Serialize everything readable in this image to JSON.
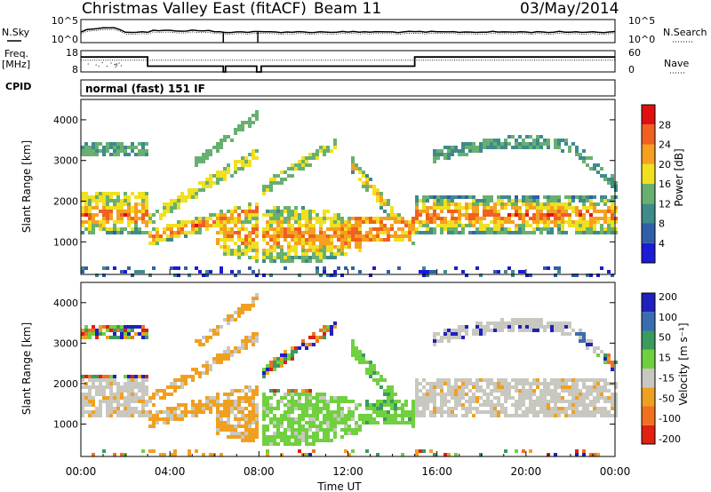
{
  "header": {
    "station": "Christmas Valley East (fitACF)",
    "beam": "Beam 11",
    "date": "03/May/2014"
  },
  "mode": "normal (fast) 151 IF",
  "chart_data": [
    {
      "id": "noise",
      "type": "line",
      "left_label": "N.Sky",
      "right_label": "N.Search",
      "left_ticks": [
        "10^5",
        "10^0"
      ],
      "right_ticks": [
        "10^5",
        "10^0"
      ],
      "x_range": [
        0,
        24
      ]
    },
    {
      "id": "freq-nave",
      "type": "line",
      "left_label": [
        "Freq.",
        "[MHz]"
      ],
      "right_label": "Nave",
      "left_ticks": [
        "18",
        "8"
      ],
      "right_ticks": [
        "60",
        "0"
      ],
      "series": [
        {
          "name": "Freq.",
          "x": [
            0,
            3.0,
            3.0,
            6.4,
            6.4,
            6.5,
            6.5,
            7.9,
            7.9,
            8.1,
            8.1,
            15.0,
            15.0,
            24
          ],
          "values": [
            15,
            15,
            10.7,
            10.7,
            8,
            8,
            10.7,
            10.7,
            8,
            8,
            10.7,
            10.7,
            15,
            15
          ]
        },
        {
          "name": "Nave",
          "x": [
            0,
            24
          ],
          "values": [
            33,
            33
          ]
        }
      ]
    },
    {
      "id": "cpid",
      "type": "line",
      "label": "CPID"
    },
    {
      "id": "power",
      "type": "heatmap",
      "ylabel": "Slant Range [km]",
      "yticks": [
        1000,
        2000,
        3000,
        4000
      ],
      "ylim": [
        200,
        4500
      ],
      "colorbar_label": "Power [dB]",
      "colorbar_ticks": [
        4,
        8,
        12,
        16,
        20,
        24,
        28
      ],
      "colorbar_range": [
        0,
        32
      ],
      "colors": [
        "#1b1bd8",
        "#2f5fa8",
        "#3f8a8a",
        "#68b070",
        "#f0e020",
        "#f5a020",
        "#f06020",
        "#e01010"
      ]
    },
    {
      "id": "velocity",
      "type": "heatmap",
      "ylabel": "Slant Range [km]",
      "yticks": [
        1000,
        2000,
        3000,
        4000
      ],
      "ylim": [
        200,
        4500
      ],
      "colorbar_label": "Velocity [m s⁻¹]",
      "colorbar_ticks": [
        200,
        100,
        50,
        15,
        -15,
        -50,
        -100,
        -200
      ],
      "colors": [
        "#2020c0",
        "#3a6db0",
        "#3a9a60",
        "#70d040",
        "#c8c8c0",
        "#f0a020",
        "#f07020",
        "#e02010"
      ]
    }
  ],
  "xaxis": {
    "label": "Time UT",
    "ticks": [
      "00:00",
      "04:00",
      "08:00",
      "12:00",
      "16:00",
      "20:00",
      "00:00"
    ],
    "range": [
      0,
      24
    ]
  }
}
